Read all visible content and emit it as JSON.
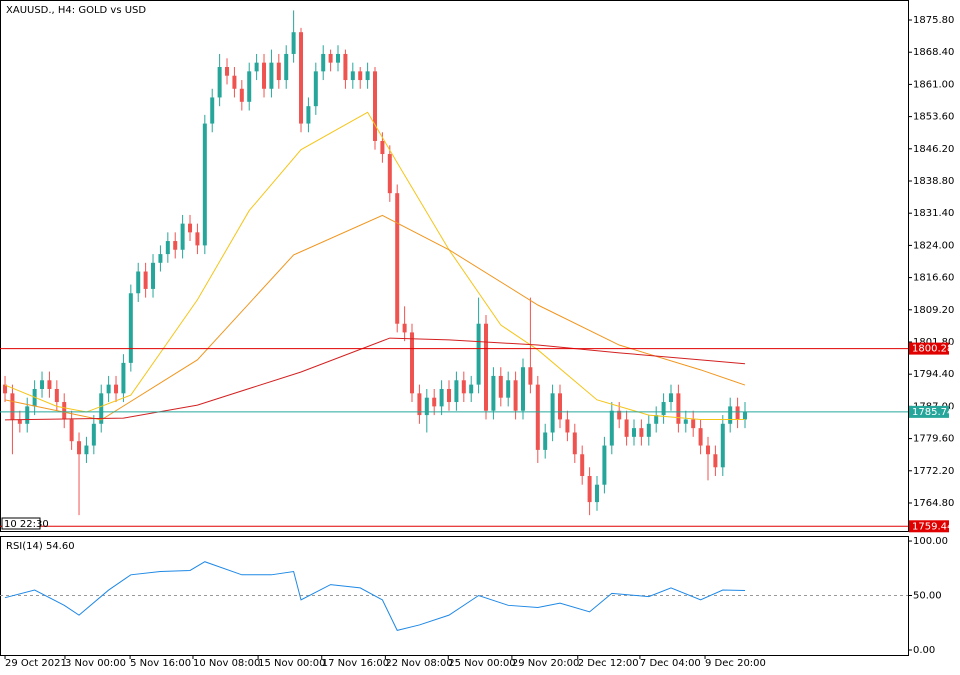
{
  "chart_data": [
    {
      "type": "candlestick",
      "title": "XAUUSD., H4:  GOLD vs USD",
      "open": [
        1792,
        1790,
        1784,
        1783,
        1787,
        1791,
        1793,
        1791,
        1788,
        1784,
        1779,
        1776,
        1778,
        1783,
        1790,
        1792,
        1790,
        1797,
        1813,
        1818,
        1814,
        1820,
        1822,
        1825,
        1823,
        1829,
        1827,
        1824,
        1852,
        1858,
        1865,
        1863,
        1860,
        1857,
        1864,
        1866,
        1860,
        1866,
        1862,
        1868,
        1873,
        1852,
        1856,
        1864,
        1868,
        1866,
        1868,
        1862,
        1864,
        1862,
        1864,
        1848,
        1845,
        1836,
        1806,
        1804,
        1790,
        1785,
        1789,
        1787,
        1791,
        1788,
        1793,
        1790,
        1792,
        1806,
        1786,
        1794,
        1789,
        1793,
        1786,
        1796,
        1792,
        1777,
        1781,
        1790,
        1784,
        1781,
        1776,
        1771,
        1765,
        1769,
        1778,
        1786,
        1784,
        1780,
        1782,
        1780,
        1783,
        1785,
        1788,
        1790,
        1783,
        1784,
        1782,
        1778,
        1776,
        1773,
        1783,
        1787,
        1784
      ],
      "high": [
        1794,
        1792,
        1786,
        1789,
        1793,
        1795,
        1795,
        1793,
        1790,
        1786,
        1781,
        1780,
        1785,
        1792,
        1794,
        1794,
        1799,
        1815,
        1820,
        1820,
        1822,
        1824,
        1827,
        1827,
        1831,
        1831,
        1829,
        1854,
        1860,
        1868,
        1867,
        1865,
        1862,
        1866,
        1868,
        1868,
        1869,
        1868,
        1870,
        1878,
        1874,
        1858,
        1866,
        1870,
        1869,
        1870,
        1869,
        1866,
        1865,
        1866,
        1865,
        1850,
        1847,
        1838,
        1810,
        1806,
        1792,
        1791,
        1791,
        1793,
        1793,
        1795,
        1795,
        1794,
        1812,
        1808,
        1796,
        1796,
        1795,
        1795,
        1798,
        1812,
        1794,
        1783,
        1792,
        1792,
        1786,
        1783,
        1778,
        1773,
        1771,
        1780,
        1788,
        1788,
        1786,
        1784,
        1784,
        1785,
        1787,
        1790,
        1792,
        1792,
        1786,
        1786,
        1784,
        1780,
        1778,
        1785,
        1789,
        1789,
        1788
      ],
      "low": [
        1788,
        1776,
        1781,
        1781,
        1785,
        1789,
        1789,
        1786,
        1782,
        1777,
        1762,
        1774,
        1776,
        1781,
        1788,
        1788,
        1788,
        1795,
        1811,
        1812,
        1812,
        1818,
        1820,
        1821,
        1821,
        1825,
        1822,
        1822,
        1850,
        1856,
        1861,
        1858,
        1855,
        1855,
        1862,
        1858,
        1858,
        1860,
        1860,
        1866,
        1850,
        1850,
        1854,
        1862,
        1864,
        1864,
        1860,
        1860,
        1860,
        1860,
        1846,
        1843,
        1834,
        1804,
        1802,
        1788,
        1783,
        1781,
        1785,
        1785,
        1786,
        1786,
        1788,
        1788,
        1790,
        1784,
        1784,
        1787,
        1787,
        1784,
        1784,
        1790,
        1774,
        1775,
        1779,
        1782,
        1779,
        1774,
        1769,
        1762,
        1763,
        1767,
        1776,
        1782,
        1778,
        1778,
        1778,
        1778,
        1781,
        1783,
        1786,
        1781,
        1781,
        1780,
        1776,
        1770,
        1771,
        1771,
        1781,
        1782,
        1782
      ],
      "close": [
        1790,
        1784,
        1783,
        1787,
        1791,
        1793,
        1791,
        1788,
        1784,
        1779,
        1776,
        1778,
        1783,
        1790,
        1792,
        1790,
        1797,
        1813,
        1818,
        1814,
        1820,
        1822,
        1825,
        1823,
        1829,
        1827,
        1824,
        1852,
        1858,
        1865,
        1863,
        1860,
        1857,
        1864,
        1866,
        1860,
        1866,
        1862,
        1868,
        1873,
        1852,
        1856,
        1864,
        1868,
        1866,
        1868,
        1862,
        1864,
        1862,
        1864,
        1848,
        1845,
        1836,
        1806,
        1804,
        1790,
        1785,
        1789,
        1787,
        1791,
        1788,
        1793,
        1790,
        1792,
        1806,
        1786,
        1794,
        1789,
        1793,
        1786,
        1796,
        1792,
        1777,
        1781,
        1790,
        1784,
        1781,
        1776,
        1771,
        1765,
        1769,
        1778,
        1786,
        1784,
        1780,
        1782,
        1780,
        1783,
        1785,
        1788,
        1790,
        1783,
        1784,
        1782,
        1778,
        1776,
        1773,
        1783,
        1787,
        1784,
        1785.74
      ],
      "bull_color": "#26a69a",
      "bear_color": "#ef5350",
      "last_color": "#26a69a",
      "moving_averages": [
        {
          "color": "#f5c518",
          "x": [
            0,
            7,
            11,
            17,
            26,
            33,
            40,
            49,
            53,
            60,
            67,
            72,
            80,
            87,
            94,
            100
          ],
          "values": [
            1791.9,
            1787,
            1785.7,
            1789.6,
            1811.5,
            1832,
            1846,
            1854.6,
            1843,
            1823,
            1805.7,
            1800,
            1788.5,
            1785,
            1784,
            1784
          ]
        },
        {
          "color": "#f0961e",
          "x": [
            0,
            13,
            26,
            39,
            51,
            60,
            72,
            83,
            94,
            100
          ],
          "values": [
            1788.5,
            1783.9,
            1797.7,
            1821.8,
            1830.9,
            1823,
            1810.3,
            1801.1,
            1795.4,
            1791.9
          ]
        },
        {
          "color": "#d32020",
          "x": [
            0,
            16,
            26,
            40,
            52,
            60,
            72,
            83,
            94,
            100
          ],
          "values": [
            1783.9,
            1784.3,
            1787.3,
            1794.9,
            1802.7,
            1802.3,
            1801.1,
            1799.3,
            1797.7,
            1796.8
          ]
        }
      ],
      "levels": [
        {
          "value": 1800.28,
          "color": "#e00000"
        },
        {
          "value": 1759.44,
          "color": "#e00000"
        }
      ],
      "time_label": "10 22:30",
      "xlim": [
        -0.68,
        122.03
      ],
      "ylim": [
        1758.13,
        1880.4
      ],
      "yticks": [
        {
          "value": 1875.8,
          "label": "1875.80"
        },
        {
          "value": 1868.4,
          "label": "1868.40"
        },
        {
          "value": 1861,
          "label": "1861.00"
        },
        {
          "value": 1853.6,
          "label": "1853.60"
        },
        {
          "value": 1846.2,
          "label": "1846.20"
        },
        {
          "value": 1838.8,
          "label": "1838.80"
        },
        {
          "value": 1831.4,
          "label": "1831.40"
        },
        {
          "value": 1824,
          "label": "1824.00"
        },
        {
          "value": 1816.6,
          "label": "1816.60"
        },
        {
          "value": 1809.2,
          "label": "1809.20"
        },
        {
          "value": 1801.8,
          "label": "1801.80"
        },
        {
          "value": 1794.4,
          "label": "1794.40"
        },
        {
          "value": 1787,
          "label": "1787.00"
        },
        {
          "value": 1779.6,
          "label": "1779.60"
        },
        {
          "value": 1772.2,
          "label": "1772.20"
        },
        {
          "value": 1764.8,
          "label": "1764.80"
        }
      ],
      "xticks": [
        {
          "value": 0,
          "label": "29 Oct 2021"
        },
        {
          "value": 8.1,
          "label": "3 Nov 00:00"
        },
        {
          "value": 16.9,
          "label": "5 Nov 16:00"
        },
        {
          "value": 25.4,
          "label": "10 Nov 08:00"
        },
        {
          "value": 34.2,
          "label": "15 Nov 00:00"
        },
        {
          "value": 42.8,
          "label": "17 Nov 16:00"
        },
        {
          "value": 51.4,
          "label": "22 Nov 08:00"
        },
        {
          "value": 59.9,
          "label": "25 Nov 00:00"
        },
        {
          "value": 68.5,
          "label": "29 Nov 20:00"
        },
        {
          "value": 77.4,
          "label": "2 Dec 12:00"
        },
        {
          "value": 85.8,
          "label": "7 Dec 04:00"
        },
        {
          "value": 94.6,
          "label": "9 Dec 20:00"
        }
      ]
    },
    {
      "type": "line",
      "title": "RSI(14) 54.60",
      "color": "#1e88e5",
      "x": [
        0,
        4,
        8,
        10,
        14,
        17,
        21,
        25,
        27,
        32,
        36,
        39,
        40,
        44,
        48,
        51,
        53,
        56,
        60,
        64,
        68,
        72,
        75,
        79,
        82,
        87,
        90,
        94,
        97,
        100
      ],
      "values": [
        48,
        55,
        41,
        32,
        55,
        69,
        72,
        73,
        81,
        69,
        69,
        72,
        46,
        60,
        57,
        46,
        18,
        23,
        32,
        50,
        41,
        39,
        43,
        35,
        52,
        49,
        57,
        46,
        55,
        54.6
      ],
      "level": 50,
      "xlim": [
        -0.68,
        122.03
      ],
      "ylim": [
        -4.6,
        103.7
      ],
      "yticks": [
        {
          "value": 100,
          "label": "100.00"
        },
        {
          "value": 50,
          "label": "50.00"
        },
        {
          "value": 0,
          "label": "0.00"
        }
      ]
    }
  ]
}
